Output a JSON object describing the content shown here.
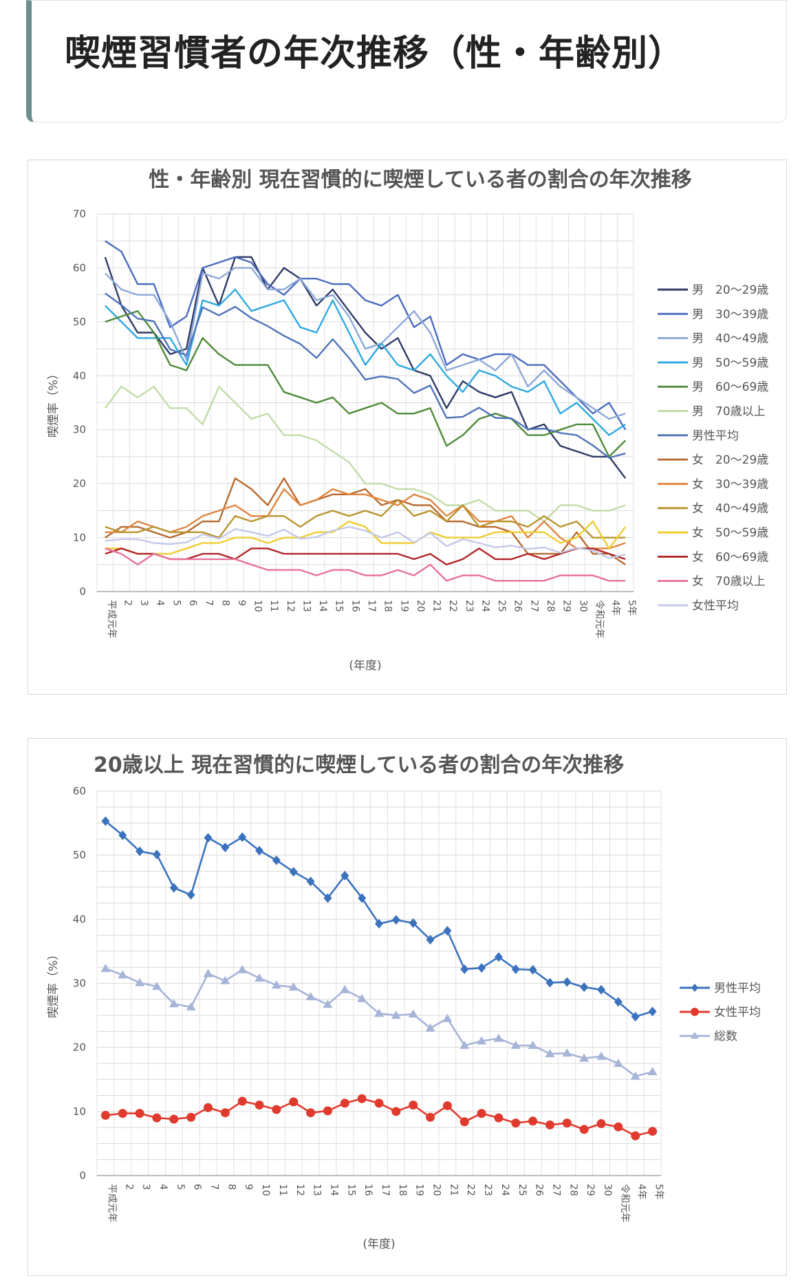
{
  "page": {
    "title": "喫煙習慣者の年次推移（性・年齢別）"
  },
  "chart_data": [
    {
      "type": "line",
      "title": "性・年齢別 現在習慣的に喫煙している者の割合の年次推移",
      "xlabel": "(年度)",
      "ylabel": "喫煙率（%）",
      "ylim": [
        0,
        70
      ],
      "yticks": [
        0,
        10,
        20,
        30,
        40,
        50,
        60,
        70
      ],
      "grid": true,
      "legend_position": "right",
      "categories": [
        "平成元年",
        "2",
        "3",
        "4",
        "5",
        "6",
        "7",
        "8",
        "9",
        "10",
        "11",
        "12",
        "13",
        "14",
        "15",
        "16",
        "17",
        "18",
        "19",
        "20",
        "21",
        "22",
        "23",
        "24",
        "25",
        "26",
        "27",
        "28",
        "29",
        "30",
        "令和元年",
        "4年",
        "5年"
      ],
      "series": [
        {
          "name": "男　20〜29歳",
          "color": "#2e3a66",
          "values": [
            62,
            53,
            48,
            48,
            44,
            45,
            60,
            53,
            62,
            62,
            56,
            60,
            58,
            53,
            56,
            52,
            48,
            45,
            47,
            41,
            40,
            34,
            39,
            37,
            36,
            37,
            30,
            31,
            27,
            26,
            25,
            25,
            21
          ]
        },
        {
          "name": "男　30〜39歳",
          "color": "#4a6bbf",
          "values": [
            65,
            63,
            57,
            57,
            49,
            51,
            60,
            61,
            62,
            61,
            57,
            55,
            58,
            58,
            57,
            57,
            54,
            53,
            55,
            49,
            51,
            42,
            44,
            43,
            44,
            44,
            42,
            42,
            39,
            36,
            33,
            35,
            30
          ]
        },
        {
          "name": "男　40〜49歳",
          "color": "#8ca8d8",
          "values": [
            59,
            56,
            55,
            55,
            50,
            43,
            59,
            58,
            60,
            60,
            56,
            56,
            58,
            54,
            55,
            51,
            45,
            46,
            49,
            52,
            48,
            41,
            42,
            43,
            41,
            44,
            38,
            41,
            38,
            36,
            34,
            32,
            33
          ]
        },
        {
          "name": "男　50〜59歳",
          "color": "#2ea8e0",
          "values": [
            53,
            50,
            47,
            47,
            47,
            42,
            54,
            53,
            56,
            52,
            53,
            54,
            49,
            48,
            54,
            48,
            42,
            46,
            42,
            41,
            44,
            40,
            37,
            41,
            40,
            38,
            37,
            39,
            33,
            35,
            32,
            29,
            31
          ]
        },
        {
          "name": "男　60〜69歳",
          "color": "#4e8a38",
          "values": [
            50,
            51,
            52,
            48,
            42,
            41,
            47,
            44,
            42,
            42,
            42,
            37,
            36,
            35,
            36,
            33,
            34,
            35,
            33,
            33,
            34,
            27,
            29,
            32,
            33,
            32,
            29,
            29,
            30,
            31,
            31,
            25,
            28
          ]
        },
        {
          "name": "男　70歳以上",
          "color": "#c2dca8",
          "values": [
            34,
            38,
            36,
            38,
            34,
            34,
            31,
            38,
            35,
            32,
            33,
            29,
            29,
            28,
            26,
            24,
            20,
            20,
            19,
            19,
            18,
            16,
            16,
            17,
            15,
            15,
            15,
            13,
            16,
            16,
            15,
            15,
            16
          ]
        },
        {
          "name": "男性平均",
          "color": "#4e72b8",
          "values": [
            55.3,
            53.1,
            50.6,
            50.1,
            44.9,
            43.8,
            52.7,
            51.2,
            52.8,
            50.7,
            49.2,
            47.4,
            45.9,
            43.3,
            46.8,
            43.3,
            39.3,
            39.9,
            39.4,
            36.8,
            38.2,
            32.2,
            32.4,
            34.1,
            32.2,
            32.1,
            30.1,
            30.2,
            29.4,
            29.0,
            27.1,
            24.8,
            25.6
          ]
        },
        {
          "name": "女　20〜29歳",
          "color": "#b86a2e",
          "values": [
            10,
            12,
            12,
            11,
            10,
            11,
            13,
            13,
            21,
            19,
            16,
            21,
            16,
            17,
            18,
            18,
            19,
            16,
            17,
            16,
            16,
            13,
            13,
            12,
            12,
            11,
            7,
            7,
            7,
            11,
            7,
            7,
            5
          ]
        },
        {
          "name": "女　30〜39歳",
          "color": "#e0843e",
          "values": [
            11,
            11,
            13,
            12,
            11,
            12,
            14,
            15,
            16,
            14,
            14,
            19,
            16,
            17,
            19,
            18,
            18,
            17,
            16,
            18,
            17,
            14,
            16,
            13,
            13,
            14,
            10,
            13,
            10,
            8,
            8,
            8,
            9
          ]
        },
        {
          "name": "女　40〜49歳",
          "color": "#b8942e",
          "values": [
            12,
            11,
            11,
            12,
            11,
            11,
            11,
            10,
            14,
            13,
            14,
            14,
            12,
            14,
            15,
            14,
            15,
            14,
            17,
            14,
            15,
            13,
            16,
            12,
            13,
            13,
            12,
            14,
            12,
            13,
            10,
            10,
            10
          ]
        },
        {
          "name": "女　50〜59歳",
          "color": "#f0cc30",
          "values": [
            8,
            8,
            7,
            7,
            7,
            8,
            9,
            9,
            10,
            10,
            9,
            10,
            10,
            11,
            11,
            13,
            12,
            9,
            9,
            9,
            11,
            10,
            10,
            10,
            11,
            11,
            11,
            11,
            9,
            10,
            13,
            8,
            12
          ]
        },
        {
          "name": "女　60〜69歳",
          "color": "#b02428",
          "values": [
            7,
            8,
            7,
            7,
            6,
            6,
            7,
            7,
            6,
            8,
            8,
            7,
            7,
            7,
            7,
            7,
            7,
            7,
            7,
            6,
            7,
            5,
            6,
            8,
            6,
            6,
            7,
            6,
            7,
            8,
            8,
            7,
            6
          ]
        },
        {
          "name": "女　70歳以上",
          "color": "#e8709a",
          "values": [
            8,
            7,
            5,
            7,
            6,
            6,
            6,
            6,
            6,
            5,
            4,
            4,
            4,
            3,
            4,
            4,
            3,
            3,
            4,
            3,
            5,
            2,
            3,
            3,
            2,
            2,
            2,
            2,
            3,
            3,
            3,
            2,
            2
          ]
        },
        {
          "name": "女性平均",
          "color": "#c4c8e8",
          "values": [
            9.4,
            9.7,
            9.7,
            9.0,
            8.8,
            9.1,
            10.6,
            9.8,
            11.6,
            11.0,
            10.3,
            11.5,
            9.8,
            10.1,
            11.3,
            12.0,
            11.3,
            10.0,
            11.0,
            9.1,
            10.9,
            8.4,
            9.7,
            9.0,
            8.2,
            8.5,
            7.9,
            8.2,
            7.2,
            8.1,
            7.6,
            6.2,
            6.9
          ]
        }
      ]
    },
    {
      "type": "line",
      "title": "20歳以上 現在習慣的に喫煙している者の割合の年次推移",
      "xlabel": "(年度)",
      "ylabel": "喫煙率（%）",
      "ylim": [
        0,
        60
      ],
      "yticks": [
        0,
        10,
        20,
        30,
        40,
        50,
        60
      ],
      "grid": true,
      "legend_position": "right",
      "categories": [
        "平成元年",
        "2",
        "3",
        "4",
        "5",
        "6",
        "7",
        "8",
        "9",
        "10",
        "11",
        "12",
        "13",
        "14",
        "15",
        "16",
        "17",
        "18",
        "19",
        "20",
        "21",
        "22",
        "23",
        "24",
        "25",
        "26",
        "27",
        "28",
        "29",
        "30",
        "令和元年",
        "4年",
        "5年"
      ],
      "series": [
        {
          "name": "男性平均",
          "color": "#3b72be",
          "marker": "diamond",
          "values": [
            55.3,
            53.1,
            50.6,
            50.1,
            44.9,
            43.8,
            52.7,
            51.2,
            52.8,
            50.7,
            49.2,
            47.4,
            45.9,
            43.3,
            46.8,
            43.3,
            39.3,
            39.9,
            39.4,
            36.8,
            38.2,
            32.2,
            32.4,
            34.1,
            32.2,
            32.1,
            30.1,
            30.2,
            29.4,
            29.0,
            27.1,
            24.8,
            25.6
          ]
        },
        {
          "name": "女性平均",
          "color": "#e03a2e",
          "marker": "circle",
          "values": [
            9.4,
            9.7,
            9.7,
            9.0,
            8.8,
            9.1,
            10.6,
            9.8,
            11.6,
            11.0,
            10.3,
            11.5,
            9.8,
            10.1,
            11.3,
            12.0,
            11.3,
            10.0,
            11.0,
            9.1,
            10.9,
            8.4,
            9.7,
            9.0,
            8.2,
            8.5,
            7.9,
            8.2,
            7.2,
            8.1,
            7.6,
            6.2,
            6.9
          ]
        },
        {
          "name": "総数",
          "color": "#a6b4d8",
          "marker": "triangle",
          "values": [
            32.3,
            31.3,
            30.1,
            29.5,
            26.8,
            26.3,
            31.5,
            30.4,
            32.1,
            30.8,
            29.7,
            29.4,
            27.9,
            26.7,
            29.0,
            27.6,
            25.3,
            25.0,
            25.2,
            23.0,
            24.5,
            20.3,
            21.0,
            21.4,
            20.3,
            20.3,
            19.0,
            19.1,
            18.3,
            18.6,
            17.5,
            15.5,
            16.2
          ]
        }
      ]
    }
  ]
}
